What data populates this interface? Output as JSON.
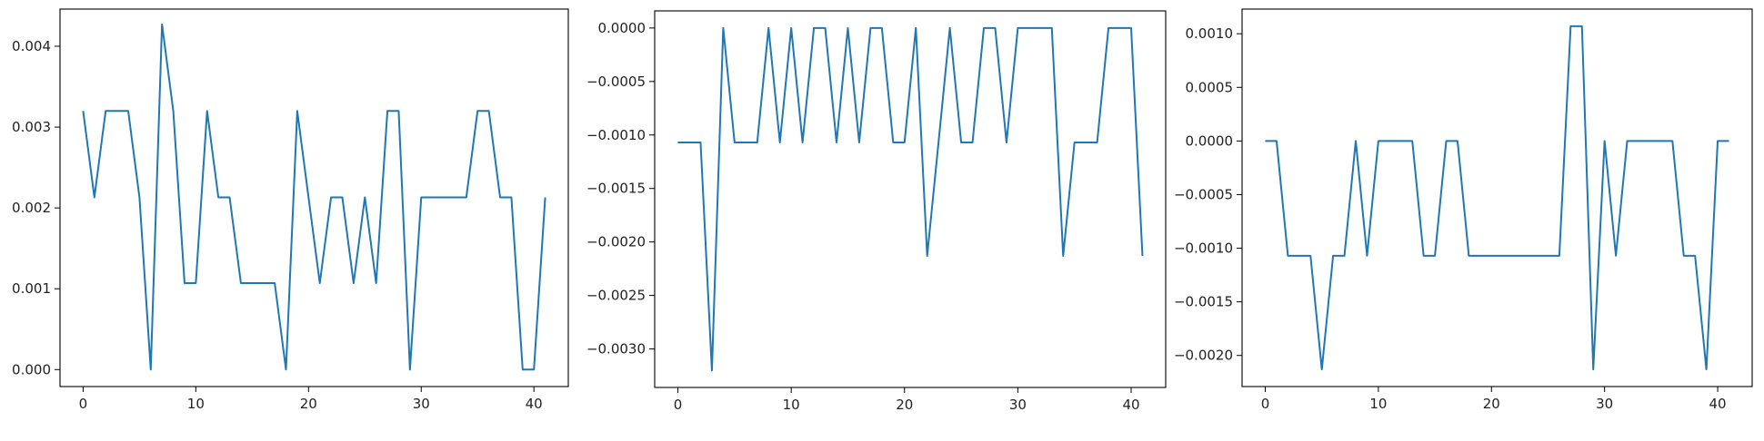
{
  "chart_data": [
    {
      "type": "line",
      "title": "",
      "xlabel": "",
      "ylabel": "",
      "grid": false,
      "color": "#1f77b4",
      "xlim": [
        -2.05,
        43.05
      ],
      "ylim": [
        -0.00021,
        0.00446
      ],
      "xticks": [
        0,
        10,
        20,
        30,
        40
      ],
      "xtick_labels": [
        "0",
        "10",
        "20",
        "30",
        "40"
      ],
      "yticks": [
        0,
        0.001,
        0.002,
        0.003,
        0.004
      ],
      "ytick_labels": [
        "0.000",
        "0.001",
        "0.002",
        "0.003",
        "0.004"
      ],
      "series": [
        {
          "x": [
            0,
            1,
            2,
            3,
            4,
            5,
            6,
            7,
            8,
            9,
            10,
            11,
            12,
            13,
            14,
            15,
            16,
            17,
            18,
            19,
            20,
            21,
            22,
            23,
            24,
            25,
            26,
            27,
            28,
            29,
            30,
            31,
            32,
            33,
            34,
            35,
            36,
            37,
            38,
            39,
            40,
            41
          ],
          "values": [
            0.0032,
            0.00213,
            0.0032,
            0.0032,
            0.0032,
            0.00213,
            0,
            0.00427,
            0.0032,
            0.00107,
            0.00107,
            0.0032,
            0.00213,
            0.00213,
            0.00107,
            0.00107,
            0.00107,
            0.00107,
            0,
            0.0032,
            0.00213,
            0.00107,
            0.00213,
            0.00213,
            0.00107,
            0.00213,
            0.00107,
            0.0032,
            0.0032,
            0,
            0.00213,
            0.00213,
            0.00213,
            0.00213,
            0.00213,
            0.0032,
            0.0032,
            0.00213,
            0.00213,
            0,
            0,
            0.00213
          ]
        }
      ]
    },
    {
      "type": "line",
      "title": "",
      "xlabel": "",
      "ylabel": "",
      "grid": false,
      "color": "#1f77b4",
      "xlim": [
        -2.05,
        43.05
      ],
      "ylim": [
        -0.00336,
        0.00016
      ],
      "xticks": [
        0,
        10,
        20,
        30,
        40
      ],
      "xtick_labels": [
        "0",
        "10",
        "20",
        "30",
        "40"
      ],
      "yticks": [
        0,
        -0.0005,
        -0.001,
        -0.0015,
        -0.002,
        -0.0025,
        -0.003
      ],
      "ytick_labels": [
        "0.0000",
        "−0.0005",
        "−0.0010",
        "−0.0015",
        "−0.0020",
        "−0.0025",
        "−0.0030"
      ],
      "series": [
        {
          "x": [
            0,
            1,
            2,
            3,
            4,
            5,
            6,
            7,
            8,
            9,
            10,
            11,
            12,
            13,
            14,
            15,
            16,
            17,
            18,
            19,
            20,
            21,
            22,
            23,
            24,
            25,
            26,
            27,
            28,
            29,
            30,
            31,
            32,
            33,
            34,
            35,
            36,
            37,
            38,
            39,
            40,
            41
          ],
          "values": [
            -0.00107,
            -0.00107,
            -0.00107,
            -0.0032,
            0,
            -0.00107,
            -0.00107,
            -0.00107,
            0,
            -0.00107,
            0,
            -0.00107,
            0,
            0,
            -0.00107,
            0,
            -0.00107,
            0,
            0,
            -0.00107,
            -0.00107,
            0,
            -0.00213,
            -0.00107,
            0,
            -0.00107,
            -0.00107,
            0,
            0,
            -0.00107,
            0,
            0,
            0,
            0,
            -0.00213,
            -0.00107,
            -0.00107,
            -0.00107,
            0,
            0,
            0,
            -0.00213
          ]
        }
      ]
    },
    {
      "type": "line",
      "title": "",
      "xlabel": "",
      "ylabel": "",
      "grid": false,
      "color": "#1f77b4",
      "xlim": [
        -2.05,
        43.05
      ],
      "ylim": [
        -0.00229,
        0.00123
      ],
      "xticks": [
        0,
        10,
        20,
        30,
        40
      ],
      "xtick_labels": [
        "0",
        "10",
        "20",
        "30",
        "40"
      ],
      "yticks": [
        0.001,
        0.0005,
        0,
        -0.0005,
        -0.001,
        -0.0015,
        -0.002
      ],
      "ytick_labels": [
        "0.0010",
        "0.0005",
        "0.0000",
        "−0.0005",
        "−0.0010",
        "−0.0015",
        "−0.0020"
      ],
      "series": [
        {
          "x": [
            0,
            1,
            2,
            3,
            4,
            5,
            6,
            7,
            8,
            9,
            10,
            11,
            12,
            13,
            14,
            15,
            16,
            17,
            18,
            19,
            20,
            21,
            22,
            23,
            24,
            25,
            26,
            27,
            28,
            29,
            30,
            31,
            32,
            33,
            34,
            35,
            36,
            37,
            38,
            39,
            40,
            41
          ],
          "values": [
            0,
            0,
            -0.00107,
            -0.00107,
            -0.00107,
            -0.00213,
            -0.00107,
            -0.00107,
            0,
            -0.00107,
            0,
            0,
            0,
            0,
            -0.00107,
            -0.00107,
            0,
            0,
            -0.00107,
            -0.00107,
            -0.00107,
            -0.00107,
            -0.00107,
            -0.00107,
            -0.00107,
            -0.00107,
            -0.00107,
            0.00107,
            0.00107,
            -0.00213,
            0,
            -0.00107,
            0,
            0,
            0,
            0,
            0,
            -0.00107,
            -0.00107,
            -0.00213,
            0,
            0
          ]
        }
      ]
    }
  ]
}
